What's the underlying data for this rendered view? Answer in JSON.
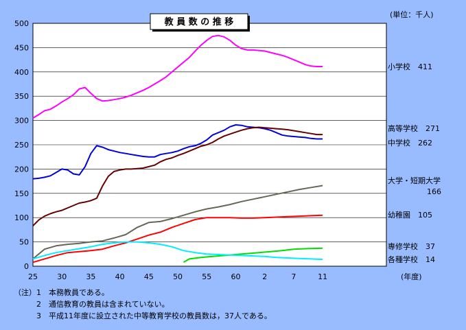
{
  "colors": {
    "background": "#99bbff",
    "plot_area": "#ffffff",
    "grid": "#000000",
    "elementary": "#ff00ff",
    "high": "#0000dd",
    "junior_high": "#660000",
    "university": "#666655",
    "kindergarten": "#ff0000",
    "special_training": "#00dd00",
    "misc": "#00eeff"
  },
  "chart_data": {
    "type": "line",
    "title": "教 員 数 の 推 移",
    "unit_label": "(単位：千人)",
    "xlabel": "(年度)",
    "ylabel": "",
    "ylim": [
      0,
      500
    ],
    "xlim": [
      25,
      86
    ],
    "grid": "horizontal",
    "yticks": [
      0,
      50,
      100,
      150,
      200,
      250,
      300,
      350,
      400,
      450,
      500
    ],
    "xtick_positions": [
      25,
      30,
      35,
      40,
      45,
      50,
      55,
      60,
      65,
      70,
      75,
      80
    ],
    "xtick_labels": [
      "25",
      "30",
      "35",
      "40",
      "45",
      "50",
      "55",
      "60",
      "2",
      "7",
      "11"
    ],
    "series": [
      {
        "name": "小学校",
        "label": "小学校　411",
        "color_key": "elementary",
        "x": [
          25,
          26,
          27,
          28,
          29,
          30,
          31,
          32,
          33,
          34,
          35,
          36,
          37,
          38,
          39,
          40,
          41,
          42,
          43,
          44,
          45,
          46,
          47,
          48,
          49,
          50,
          51,
          52,
          53,
          54,
          55,
          56,
          57,
          58,
          59,
          60,
          61,
          62,
          63,
          64,
          65,
          66,
          67,
          68,
          69,
          70,
          71,
          72,
          73,
          74,
          75
        ],
        "y": [
          305,
          312,
          320,
          323,
          330,
          338,
          345,
          353,
          365,
          368,
          356,
          345,
          340,
          341,
          343,
          345,
          348,
          352,
          357,
          362,
          368,
          375,
          382,
          390,
          400,
          410,
          420,
          430,
          443,
          455,
          465,
          473,
          475,
          472,
          465,
          455,
          448,
          445,
          445,
          444,
          443,
          440,
          437,
          434,
          430,
          425,
          420,
          415,
          412,
          411,
          411
        ]
      },
      {
        "name": "中学校",
        "label": "中学校　262",
        "color_key": "high",
        "x": [
          25,
          26,
          27,
          28,
          29,
          30,
          31,
          32,
          33,
          34,
          35,
          36,
          37,
          38,
          39,
          40,
          41,
          42,
          43,
          44,
          45,
          46,
          47,
          48,
          49,
          50,
          51,
          52,
          53,
          54,
          55,
          56,
          57,
          58,
          59,
          60,
          61,
          62,
          63,
          64,
          65,
          66,
          67,
          68,
          69,
          70,
          71,
          72,
          73,
          74,
          75
        ],
        "y": [
          180,
          181,
          183,
          186,
          193,
          200,
          198,
          190,
          188,
          205,
          232,
          248,
          245,
          240,
          237,
          234,
          232,
          230,
          228,
          226,
          225,
          225,
          230,
          232,
          234,
          237,
          242,
          246,
          248,
          253,
          260,
          270,
          275,
          280,
          287,
          291,
          290,
          287,
          286,
          285,
          283,
          280,
          275,
          270,
          268,
          267,
          266,
          265,
          263,
          262,
          262
        ]
      },
      {
        "name": "高等学校",
        "label": "高等学校　271",
        "color_key": "junior_high",
        "x": [
          25,
          26,
          27,
          28,
          29,
          30,
          31,
          32,
          33,
          34,
          35,
          36,
          37,
          38,
          39,
          40,
          41,
          42,
          43,
          44,
          45,
          46,
          47,
          48,
          49,
          50,
          51,
          52,
          53,
          54,
          55,
          56,
          57,
          58,
          59,
          60,
          61,
          62,
          63,
          64,
          65,
          66,
          67,
          68,
          69,
          70,
          71,
          72,
          73,
          74,
          75
        ],
        "y": [
          83,
          95,
          103,
          108,
          112,
          115,
          120,
          125,
          130,
          132,
          135,
          140,
          165,
          185,
          195,
          198,
          200,
          200,
          201,
          202,
          205,
          208,
          215,
          220,
          223,
          228,
          232,
          237,
          242,
          247,
          250,
          255,
          262,
          268,
          272,
          276,
          280,
          283,
          285,
          286,
          285,
          284,
          283,
          282,
          281,
          279,
          277,
          275,
          273,
          271,
          271
        ]
      },
      {
        "name": "大学・短期大学",
        "label_line1": "大学・短期大学",
        "label_line2": "166",
        "color_key": "university",
        "x": [
          25,
          27,
          29,
          31,
          33,
          35,
          37,
          39,
          41,
          43,
          45,
          47,
          49,
          51,
          53,
          55,
          57,
          59,
          61,
          63,
          65,
          67,
          69,
          71,
          73,
          75
        ],
        "y": [
          15,
          35,
          42,
          45,
          47,
          50,
          52,
          58,
          65,
          80,
          90,
          92,
          98,
          105,
          112,
          118,
          122,
          127,
          133,
          138,
          143,
          148,
          153,
          158,
          162,
          166
        ]
      },
      {
        "name": "幼稚園",
        "label": "幼稚園　105",
        "color_key": "kindergarten",
        "x": [
          25,
          27,
          29,
          31,
          33,
          35,
          37,
          39,
          41,
          43,
          45,
          47,
          49,
          51,
          53,
          55,
          57,
          59,
          61,
          63,
          65,
          67,
          69,
          71,
          73,
          75
        ],
        "y": [
          8,
          15,
          22,
          28,
          30,
          32,
          35,
          42,
          48,
          56,
          64,
          70,
          80,
          88,
          96,
          100,
          100,
          100,
          99,
          99,
          100,
          101,
          102,
          103,
          104,
          105
        ]
      },
      {
        "name": "専修学校",
        "label": "専修学校　37",
        "color_key": "special_training",
        "x": [
          51,
          52,
          54,
          56,
          58,
          60,
          62,
          64,
          66,
          68,
          70,
          72,
          75
        ],
        "y": [
          8,
          15,
          18,
          20,
          22,
          24,
          26,
          28,
          30,
          32,
          35,
          36,
          37
        ]
      },
      {
        "name": "各種学校",
        "label": "各種学校　14",
        "color_key": "misc",
        "x": [
          25,
          27,
          29,
          31,
          33,
          35,
          37,
          39,
          41,
          43,
          45,
          47,
          49,
          51,
          53,
          55,
          57,
          59,
          61,
          63,
          65,
          67,
          69,
          71,
          73,
          75
        ],
        "y": [
          15,
          22,
          28,
          32,
          36,
          40,
          45,
          48,
          50,
          50,
          48,
          45,
          40,
          32,
          28,
          25,
          24,
          23,
          22,
          21,
          20,
          18,
          17,
          16,
          15,
          14
        ]
      }
    ]
  },
  "notes": [
    "（注）1　本務教員である。",
    "　　　2　通信教育の教員は含まれていない。",
    "　　　3　平成11年度に設立された中等教育学校の教員数は，37人である。"
  ]
}
